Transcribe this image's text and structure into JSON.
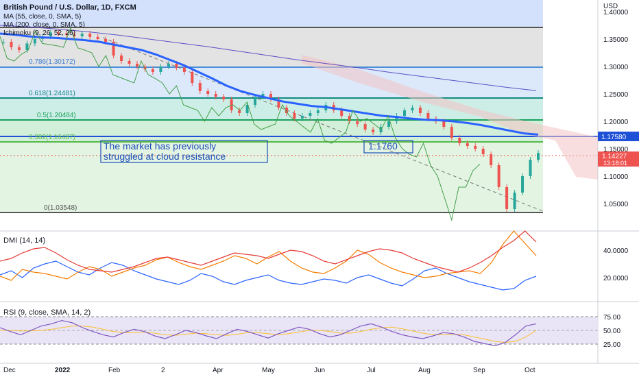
{
  "header": {
    "symbol": "British Pound / U.S. Dollar, 1D, FXCM",
    "indicators": [
      "MA (55, close, 0, SMA, 5)",
      "MA (200, close, 0, SMA, 5)",
      "Ichimoku (9, 26, 52, 26)"
    ],
    "currency": "USD"
  },
  "dmi_title": "DMI (14, 14)",
  "rsi_title": "RSI (9, close, SMA, 14, 2)",
  "fib_labels": {
    "f786": "0.786(1.30172)",
    "f618": "0.618(1.24481)",
    "f50": "0.5(1.20484)",
    "f382": "0.382(1.16487)",
    "f0": "0(1.03548)"
  },
  "annotation": {
    "line1": "The market has previously",
    "line2": "struggled at cloud resistance",
    "level_box": "1.1760"
  },
  "price_tags": {
    "level": "1.17580",
    "last": "1.14227",
    "countdown": "13:18:01"
  },
  "y_ticks_price": [
    "1.40000",
    "1.35000",
    "1.30000",
    "1.25000",
    "1.20000",
    "1.15000",
    "1.10000",
    "1.05000"
  ],
  "y_ticks_dmi": [
    "40.0000",
    "20.0000"
  ],
  "y_ticks_rsi": [
    "75.00",
    "50.00",
    "25.00"
  ],
  "x_ticks": [
    "Dec",
    "2022",
    "Feb",
    "2",
    "Apr",
    "May",
    "Jun",
    "Jul",
    "Aug",
    "Sep",
    "Oct"
  ],
  "colors": {
    "candle_up": "#26a69a",
    "candle_down": "#ef5350",
    "ma55": "#2962ff",
    "ma200": "#5b4fc4",
    "fib_green": "#0e9a5c",
    "fib_blue": "#4a90d9",
    "ichimoku_green": "#43a047",
    "dmi_plus": "#2962ff",
    "dmi_minus": "#f57c00",
    "adx": "#e53935",
    "rsi": "#7e57c2",
    "rsi_ma": "#fbc02d"
  },
  "chart_data": {
    "type": "line",
    "ylim_price": [
      1.0,
      1.4
    ],
    "fib_levels": [
      1.37,
      1.30172,
      1.24481,
      1.20484,
      1.16487,
      1.03548
    ],
    "horizontal_level": 1.1758,
    "last_price": 1.14227,
    "price_path": [
      1.345,
      1.335,
      1.33,
      1.342,
      1.35,
      1.355,
      1.362,
      1.36,
      1.358,
      1.355,
      1.36,
      1.354,
      1.35,
      1.345,
      1.32,
      1.31,
      1.305,
      1.3,
      1.295,
      1.29,
      1.3,
      1.305,
      1.298,
      1.29,
      1.27,
      1.255,
      1.25,
      1.245,
      1.24,
      1.22,
      1.215,
      1.23,
      1.245,
      1.25,
      1.24,
      1.225,
      1.215,
      1.205,
      1.21,
      1.215,
      1.22,
      1.23,
      1.22,
      1.21,
      1.2,
      1.195,
      1.185,
      1.18,
      1.19,
      1.2,
      1.21,
      1.22,
      1.225,
      1.215,
      1.205,
      1.2,
      1.19,
      1.17,
      1.16,
      1.155,
      1.15,
      1.14,
      1.12,
      1.08,
      1.04,
      1.07,
      1.1,
      1.13,
      1.14227
    ],
    "ma55_path": [
      1.36,
      1.358,
      1.355,
      1.353,
      1.352,
      1.35,
      1.348,
      1.345,
      1.34,
      1.335,
      1.33,
      1.322,
      1.312,
      1.302,
      1.29,
      1.278,
      1.265,
      1.255,
      1.248,
      1.242,
      1.236,
      1.232,
      1.228,
      1.226,
      1.222,
      1.218,
      1.214,
      1.21,
      1.208,
      1.205,
      1.203,
      1.202,
      1.2,
      1.197,
      1.193,
      1.188,
      1.183,
      1.178,
      1.1758
    ],
    "ma200_path": [
      1.375,
      1.372,
      1.368,
      1.363,
      1.357,
      1.35,
      1.343,
      1.336,
      1.328,
      1.32,
      1.312,
      1.305,
      1.298,
      1.29,
      1.283,
      1.276,
      1.269,
      1.262,
      1.256
    ],
    "dmi_plus": [
      22,
      25,
      20,
      27,
      30,
      32,
      28,
      24,
      22,
      27,
      31,
      29,
      25,
      22,
      19,
      17,
      15,
      18,
      23,
      21,
      17,
      15,
      18,
      20,
      22,
      18,
      16,
      15,
      17,
      19,
      18,
      16,
      20,
      22,
      19,
      16,
      14,
      19,
      25,
      27,
      23,
      20,
      17,
      15,
      13,
      11,
      12,
      18,
      21
    ],
    "dmi_minus": [
      21,
      18,
      26,
      24,
      23,
      21,
      19,
      24,
      28,
      26,
      21,
      24,
      27,
      29,
      33,
      35,
      31,
      28,
      26,
      29,
      32,
      36,
      34,
      30,
      35,
      39,
      32,
      27,
      24,
      23,
      27,
      32,
      40,
      37,
      31,
      27,
      24,
      22,
      20,
      21,
      23,
      24,
      25,
      23,
      31,
      44,
      54,
      45,
      36
    ],
    "adx": [
      32,
      34,
      38,
      41,
      42,
      38,
      33,
      29,
      26,
      25,
      24,
      26,
      28,
      31,
      34,
      35,
      33,
      31,
      29,
      32,
      35,
      38,
      37,
      36,
      34,
      37,
      40,
      39,
      36,
      32,
      30,
      33,
      36,
      39,
      41,
      40,
      38,
      34,
      31,
      28,
      26,
      24,
      27,
      31,
      36,
      42,
      47,
      54,
      46
    ],
    "rsi": [
      55,
      48,
      42,
      50,
      58,
      62,
      68,
      64,
      55,
      48,
      42,
      38,
      46,
      52,
      48,
      40,
      35,
      42,
      50,
      46,
      40,
      35,
      44,
      52,
      48,
      42,
      36,
      44,
      50,
      56,
      52,
      44,
      38,
      42,
      50,
      58,
      62,
      56,
      48,
      42,
      38,
      35,
      40,
      46,
      44,
      38,
      30,
      26,
      22,
      28,
      42,
      58,
      62
    ],
    "rsi_ma": [
      50,
      50,
      49,
      49,
      50,
      52,
      55,
      58,
      58,
      56,
      52,
      48,
      46,
      46,
      47,
      45,
      42,
      41,
      43,
      45,
      44,
      42,
      41,
      43,
      46,
      46,
      44,
      42,
      44,
      47,
      50,
      50,
      48,
      45,
      45,
      48,
      52,
      55,
      56,
      53,
      49,
      45,
      42,
      42,
      43,
      42,
      38,
      34,
      30,
      28,
      30,
      38,
      50
    ]
  }
}
